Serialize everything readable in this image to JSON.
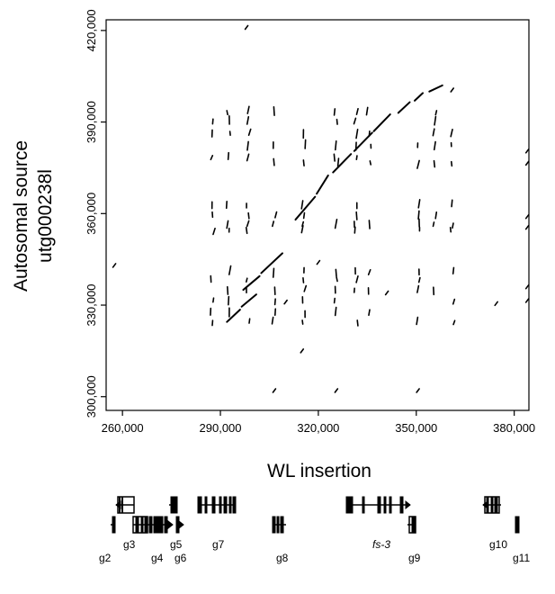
{
  "chart_data": {
    "type": "scatter",
    "xlabel": "WL insertion",
    "ylabel_lines": [
      "Autosomal source",
      "utg000238l"
    ],
    "xlim": [
      255000,
      384500
    ],
    "ylim": [
      295500,
      423500
    ],
    "xticks": [
      260000,
      290000,
      320000,
      350000,
      380000
    ],
    "yticks": [
      300000,
      330000,
      360000,
      390000,
      420000
    ],
    "xtick_labels": [
      "260,000",
      "290,000",
      "320,000",
      "350,000",
      "380,000"
    ],
    "ytick_labels": [
      "300,000",
      "330,000",
      "360,000",
      "390,000",
      "420,000"
    ],
    "grid": false,
    "mark_color": "#000000",
    "diagonal_segments": [
      {
        "x": [
          297000,
          302000
        ],
        "y": [
          335000,
          339500
        ]
      },
      {
        "x": [
          302500,
          309000
        ],
        "y": [
          340500,
          347000
        ]
      },
      {
        "x": [
          313000,
          319000
        ],
        "y": [
          358000,
          365500
        ]
      },
      {
        "x": [
          319500,
          323000
        ],
        "y": [
          366500,
          372500
        ]
      },
      {
        "x": [
          324500,
          330000
        ],
        "y": [
          373500,
          379500
        ]
      },
      {
        "x": [
          331000,
          336500
        ],
        "y": [
          380500,
          386500
        ]
      },
      {
        "x": [
          337000,
          342000
        ],
        "y": [
          387000,
          392500
        ]
      },
      {
        "x": [
          344500,
          348000
        ],
        "y": [
          393000,
          396500
        ]
      },
      {
        "x": [
          349500,
          352000
        ],
        "y": [
          397000,
          399500
        ]
      },
      {
        "x": [
          354000,
          358000
        ],
        "y": [
          400000,
          402000
        ]
      },
      {
        "x": [
          292000,
          296000
        ],
        "y": [
          324500,
          328500
        ]
      },
      {
        "x": [
          296500,
          301000
        ],
        "y": [
          329500,
          333500
        ]
      }
    ],
    "repeat_columns_x": [
      287500,
      292500,
      298500,
      306500,
      315500,
      325500,
      331500,
      335500,
      350500,
      355500,
      361000
    ],
    "repeat_rows_y": [
      324500,
      327500,
      331500,
      335000,
      338500,
      341000,
      354500,
      356500,
      359500,
      363000,
      376500,
      378500,
      382500,
      386500,
      390500,
      393500
    ],
    "isolated_points": [
      {
        "x": 298000,
        "y": 421000
      },
      {
        "x": 257500,
        "y": 343000
      },
      {
        "x": 306500,
        "y": 302000
      },
      {
        "x": 325500,
        "y": 302000
      },
      {
        "x": 350500,
        "y": 302000
      },
      {
        "x": 315000,
        "y": 315000
      },
      {
        "x": 320000,
        "y": 344000
      },
      {
        "x": 374500,
        "y": 330500
      },
      {
        "x": 384000,
        "y": 331500
      },
      {
        "x": 384000,
        "y": 336000
      },
      {
        "x": 384000,
        "y": 355500
      },
      {
        "x": 384000,
        "y": 359000
      },
      {
        "x": 384000,
        "y": 376500
      },
      {
        "x": 384000,
        "y": 380500
      },
      {
        "x": 361000,
        "y": 400500
      },
      {
        "x": 341000,
        "y": 334000
      },
      {
        "x": 310000,
        "y": 331000
      }
    ]
  },
  "gene_track": {
    "labels": [
      "g2",
      "g3",
      "g4",
      "g5",
      "g6",
      "g7",
      "g8",
      "fs-3",
      "g9",
      "g10",
      "g11"
    ]
  }
}
